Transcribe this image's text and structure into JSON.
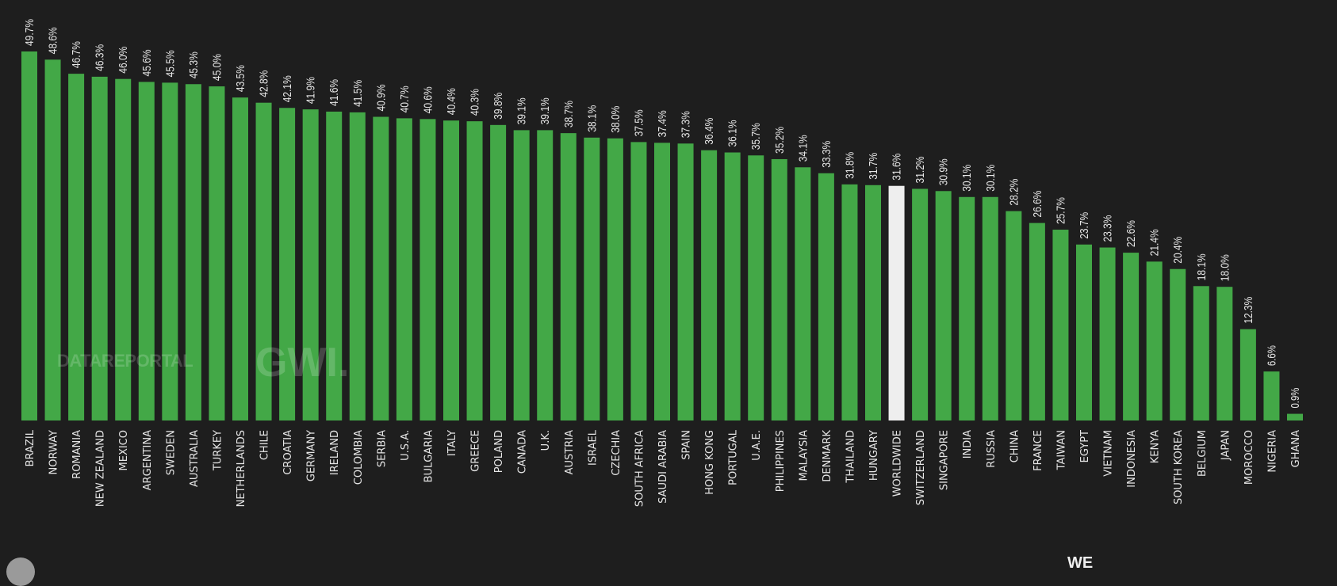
{
  "chart_data": {
    "type": "bar",
    "title": "",
    "xlabel": "",
    "ylabel": "",
    "ylim": [
      0,
      50
    ],
    "grid": false,
    "value_suffix": "%",
    "categories": [
      "BRAZIL",
      "NORWAY",
      "ROMANIA",
      "NEW ZEALAND",
      "MEXICO",
      "ARGENTINA",
      "SWEDEN",
      "AUSTRALIA",
      "TURKEY",
      "NETHERLANDS",
      "CHILE",
      "CROATIA",
      "GERMANY",
      "IRELAND",
      "COLOMBIA",
      "SERBIA",
      "U.S.A.",
      "BULGARIA",
      "ITALY",
      "GREECE",
      "POLAND",
      "CANADA",
      "U.K.",
      "AUSTRIA",
      "ISRAEL",
      "CZECHIA",
      "SOUTH AFRICA",
      "SAUDI ARABIA",
      "SPAIN",
      "HONG KONG",
      "PORTUGAL",
      "U.A.E.",
      "PHILIPPINES",
      "MALAYSIA",
      "DENMARK",
      "THAILAND",
      "HUNGARY",
      "WORLDWIDE",
      "SWITZERLAND",
      "SINGAPORE",
      "INDIA",
      "RUSSIA",
      "CHINA",
      "FRANCE",
      "TAIWAN",
      "EGYPT",
      "VIETNAM",
      "INDONESIA",
      "KENYA",
      "SOUTH KOREA",
      "BELGIUM",
      "JAPAN",
      "MOROCCO",
      "NIGERIA",
      "GHANA"
    ],
    "values": [
      49.7,
      48.6,
      46.7,
      46.3,
      46.0,
      45.6,
      45.5,
      45.3,
      45.0,
      43.5,
      42.8,
      42.1,
      41.9,
      41.6,
      41.5,
      40.9,
      40.7,
      40.6,
      40.4,
      40.3,
      39.8,
      39.1,
      39.1,
      38.7,
      38.1,
      38.0,
      37.5,
      37.4,
      37.3,
      36.4,
      36.1,
      35.7,
      35.2,
      34.1,
      33.3,
      31.8,
      31.7,
      31.6,
      31.2,
      30.9,
      30.1,
      30.1,
      28.2,
      26.6,
      25.7,
      23.7,
      23.3,
      22.6,
      21.4,
      20.4,
      18.1,
      18.0,
      12.3,
      6.6,
      0.9
    ],
    "value_labels": [
      "49.7%",
      "48.6%",
      "46.7%",
      "46.3%",
      "46.0%",
      "45.6%",
      "45.5%",
      "45.3%",
      "45.0%",
      "43.5%",
      "42.8%",
      "42.1%",
      "41.9%",
      "41.6%",
      "41.5%",
      "40.9%",
      "40.7%",
      "40.6%",
      "40.4%",
      "40.3%",
      "39.8%",
      "39.1%",
      "39.1%",
      "38.7%",
      "38.1%",
      "38.0%",
      "37.5%",
      "37.4%",
      "37.3%",
      "36.4%",
      "36.1%",
      "35.7%",
      "35.2%",
      "34.1%",
      "33.3%",
      "31.8%",
      "31.7%",
      "31.6%",
      "31.2%",
      "30.9%",
      "30.1%",
      "30.1%",
      "28.2%",
      "26.6%",
      "25.7%",
      "23.7%",
      "23.3%",
      "22.6%",
      "21.4%",
      "20.4%",
      "18.1%",
      "18.0%",
      "12.3%",
      "6.6%",
      "0.9%"
    ],
    "highlight": "WORLDWIDE",
    "colors": {
      "bar": "#43a847",
      "highlight": "#eeeeee",
      "text": "#e6e6e6"
    }
  },
  "watermark": {
    "datareportal": "DATAREPORTAL",
    "gwi": "GWI."
  },
  "footer": {
    "partial_text": "WE"
  }
}
